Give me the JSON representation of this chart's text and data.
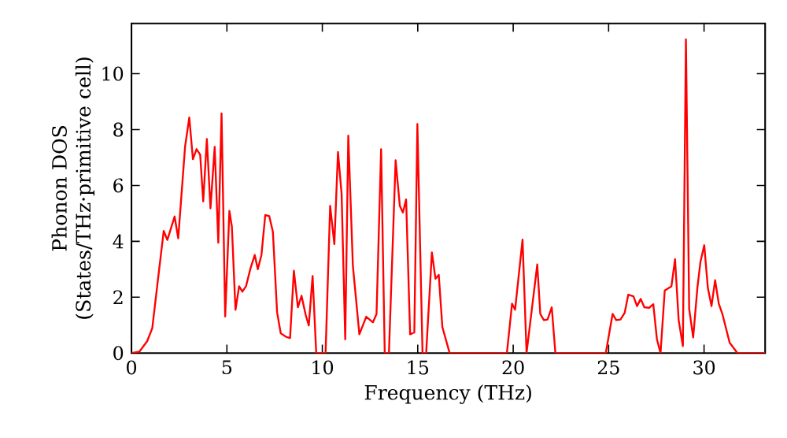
{
  "chart_data": {
    "type": "line",
    "xlabel": "Frequency (THz)",
    "ylabel": "Phonon DOS (States/THz·primitive cell)",
    "xlim": [
      0,
      33.2
    ],
    "ylim": [
      0,
      11.8
    ],
    "xticks": [
      0,
      5,
      10,
      15,
      20,
      25,
      30
    ],
    "yticks": [
      0,
      2,
      4,
      6,
      8,
      10
    ],
    "marker": "none",
    "line_style": "solid",
    "series": [
      {
        "color": "#ff0000",
        "x": [
          0,
          0.41,
          0.82,
          1.09,
          1.36,
          1.69,
          1.88,
          2.26,
          2.45,
          2.81,
          3.03,
          3.22,
          3.41,
          3.6,
          3.76,
          3.95,
          4.14,
          4.36,
          4.55,
          4.72,
          4.91,
          5.13,
          5.26,
          5.45,
          5.64,
          5.81,
          6.0,
          6.24,
          6.46,
          6.62,
          6.81,
          7.01,
          7.22,
          7.41,
          7.63,
          7.82,
          8.1,
          8.31,
          8.51,
          8.72,
          8.91,
          9.13,
          9.29,
          9.49,
          9.68,
          10.17,
          10.41,
          10.63,
          10.82,
          11.01,
          11.2,
          11.36,
          11.6,
          11.94,
          12.3,
          12.65,
          12.84,
          13.08,
          13.27,
          13.49,
          13.84,
          14.06,
          14.22,
          14.39,
          14.6,
          14.82,
          14.98,
          15.25,
          15.44,
          15.74,
          15.93,
          16.1,
          16.29,
          16.67,
          19.67,
          19.94,
          20.1,
          20.49,
          20.7,
          21.26,
          21.42,
          21.61,
          21.8,
          22.02,
          22.21,
          24.85,
          25.21,
          25.4,
          25.62,
          25.84,
          26.03,
          26.3,
          26.49,
          26.68,
          26.87,
          27.12,
          27.34,
          27.53,
          27.72,
          27.94,
          28.29,
          28.48,
          28.67,
          28.89,
          29.05,
          29.22,
          29.43,
          29.65,
          29.81,
          30.01,
          30.2,
          30.39,
          30.58,
          30.77,
          30.96,
          31.34,
          31.75,
          33.2
        ],
        "values": [
          0,
          0.05,
          0.42,
          0.89,
          2.47,
          4.37,
          4.05,
          4.89,
          4.11,
          7.4,
          8.43,
          6.94,
          7.3,
          7.1,
          5.43,
          7.66,
          5.18,
          7.38,
          3.95,
          8.58,
          1.31,
          5.09,
          4.53,
          1.55,
          2.39,
          2.2,
          2.39,
          3.04,
          3.51,
          3.0,
          3.51,
          4.94,
          4.9,
          4.34,
          1.46,
          0.71,
          0.58,
          0.54,
          2.95,
          1.64,
          2.05,
          1.36,
          0.99,
          2.76,
          0,
          0,
          5.27,
          3.9,
          7.2,
          5.7,
          0.49,
          7.78,
          3.13,
          0.67,
          1.3,
          1.1,
          1.4,
          7.3,
          0,
          0,
          6.9,
          5.27,
          5.03,
          5.5,
          0.67,
          0.74,
          8.2,
          0,
          0,
          3.6,
          2.66,
          2.8,
          0.93,
          0,
          0,
          1.77,
          1.55,
          4.06,
          0,
          3.17,
          1.4,
          1.18,
          1.2,
          1.64,
          0,
          0,
          1.4,
          1.18,
          1.2,
          1.44,
          2.09,
          2.03,
          1.68,
          1.94,
          1.64,
          1.62,
          1.75,
          0.5,
          0,
          2.24,
          2.39,
          3.36,
          1.18,
          0.25,
          11.23,
          1.58,
          0.56,
          2.33,
          3.26,
          3.86,
          2.33,
          1.68,
          2.61,
          1.77,
          1.4,
          0.37,
          0,
          0
        ]
      }
    ]
  }
}
